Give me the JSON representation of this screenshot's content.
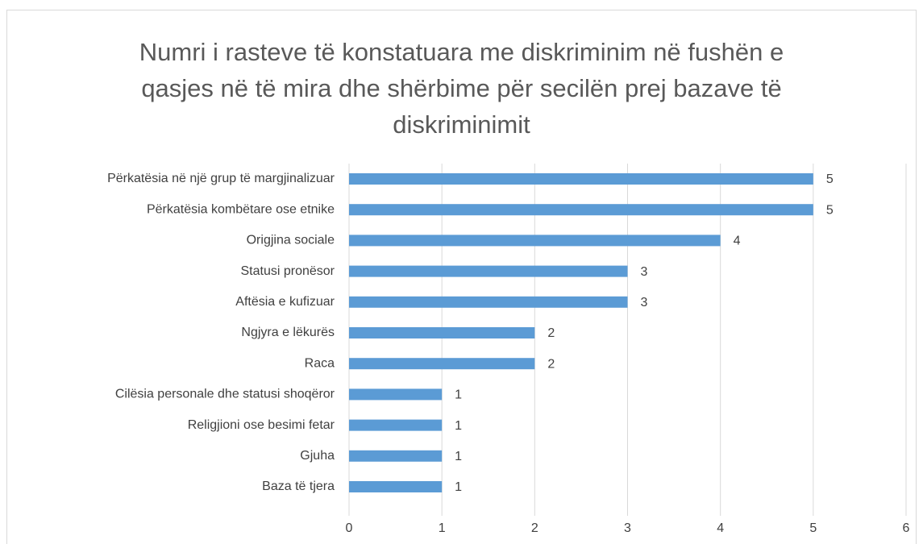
{
  "chart_data": {
    "type": "bar",
    "orientation": "horizontal",
    "title": "Numri i rasteve të konstatuara me diskriminim në fushën e qasjes në të mira dhe shërbime për secilën prej bazave të diskriminimit",
    "categories": [
      "Përkatësia në një grup të margjinalizuar",
      "Përkatësia kombëtare ose etnike",
      "Origjina sociale",
      "Statusi pronësor",
      "Aftësia e kufizuar",
      "Ngjyra e lëkurës",
      "Raca",
      "Cilësia personale dhe statusi shoqëror",
      "Religjioni ose besimi fetar",
      "Gjuha",
      "Baza të tjera"
    ],
    "values": [
      5,
      5,
      4,
      3,
      3,
      2,
      2,
      1,
      1,
      1,
      1
    ],
    "color": "#5b9bd5",
    "xlim": [
      0,
      6
    ],
    "xticks": [
      0,
      1,
      2,
      3,
      4,
      5,
      6
    ],
    "grid": true
  }
}
